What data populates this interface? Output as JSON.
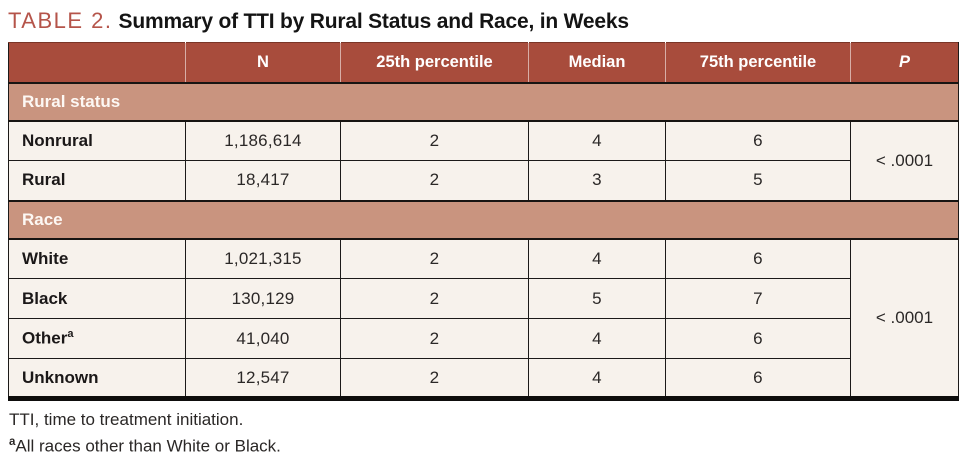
{
  "caption": {
    "label": "TABLE 2.",
    "title": "Summary of TTI by Rural Status and Race, in Weeks"
  },
  "table": {
    "columns": {
      "label": "",
      "n": "N",
      "p25": "25th percentile",
      "median": "Median",
      "p75": "75th percentile",
      "p": "P"
    },
    "sections": [
      {
        "name": "Rural status",
        "p_value": "< .0001",
        "rows": [
          {
            "label": "Nonrural",
            "n": "1,186,614",
            "p25": "2",
            "median": "4",
            "p75": "6"
          },
          {
            "label": "Rural",
            "n": "18,417",
            "p25": "2",
            "median": "3",
            "p75": "5"
          }
        ]
      },
      {
        "name": "Race",
        "p_value": "< .0001",
        "rows": [
          {
            "label": "White",
            "n": "1,021,315",
            "p25": "2",
            "median": "4",
            "p75": "6"
          },
          {
            "label": "Black",
            "n": "130,129",
            "p25": "2",
            "median": "5",
            "p75": "7"
          },
          {
            "label": "Other",
            "label_sup": "a",
            "n": "41,040",
            "p25": "2",
            "median": "4",
            "p75": "6"
          },
          {
            "label": "Unknown",
            "n": "12,547",
            "p25": "2",
            "median": "4",
            "p75": "6"
          }
        ]
      }
    ]
  },
  "footnotes": [
    {
      "text": "TTI, time to treatment initiation."
    },
    {
      "sup": "a",
      "text": "All races other than White or Black."
    }
  ],
  "colors": {
    "accent_red": "#b5544a",
    "header_bg": "#a84c3c",
    "section_bg": "#c9947f",
    "row_bg": "#f7f2ec",
    "border": "#1c1a19"
  }
}
